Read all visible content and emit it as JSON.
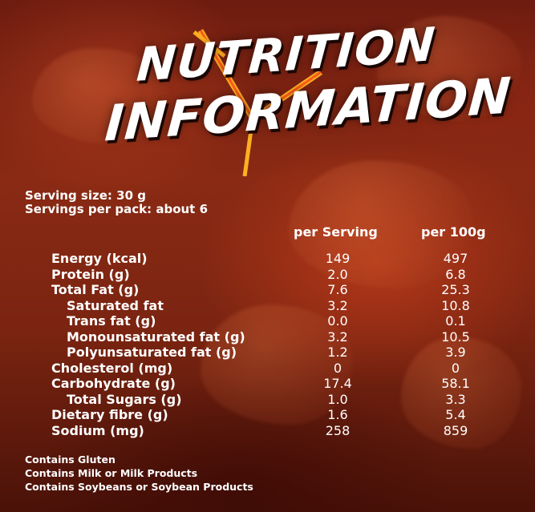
{
  "title": {
    "line1": "NUTRITION",
    "line2": "INFORMATION"
  },
  "serving": {
    "size": "Serving size: 30 g",
    "per_pack": "Servings per pack: about 6"
  },
  "columns": {
    "per_serving": "per Serving",
    "per_100g": "per 100g"
  },
  "rows": [
    {
      "label": "Energy (kcal)",
      "per_serving": "149",
      "per_100g": "497"
    },
    {
      "label": "Protein (g)",
      "per_serving": "2.0",
      "per_100g": "6.8"
    },
    {
      "label": "Total Fat (g)",
      "per_serving": "7.6",
      "per_100g": "25.3"
    },
    {
      "label": "Saturated fat",
      "per_serving": "3.2",
      "per_100g": "10.8"
    },
    {
      "label": "Trans fat (g)",
      "per_serving": "0.0",
      "per_100g": "0.1"
    },
    {
      "label": "Monounsaturated fat (g)",
      "per_serving": "3.2",
      "per_100g": "10.5"
    },
    {
      "label": "Polyunsaturated fat (g)",
      "per_serving": "1.2",
      "per_100g": "3.9"
    },
    {
      "label": "Cholesterol (mg)",
      "per_serving": "0",
      "per_100g": "0"
    },
    {
      "label": "Carbohydrate (g)",
      "per_serving": "17.4",
      "per_100g": "58.1"
    },
    {
      "label": "Total Sugars (g)",
      "per_serving": "1.0",
      "per_100g": "3.3"
    },
    {
      "label": "Dietary fibre (g)",
      "per_serving": "1.6",
      "per_100g": "5.4"
    },
    {
      "label": "Sodium (mg)",
      "per_serving": "258",
      "per_100g": "859"
    }
  ],
  "notes": [
    "Contains Gluten",
    "Contains Milk or Milk Products",
    "Contains Soybeans or Soybean Products"
  ],
  "colors": {
    "background": "#7a2411",
    "text": "#ffffff",
    "accent": "#ffb020"
  }
}
